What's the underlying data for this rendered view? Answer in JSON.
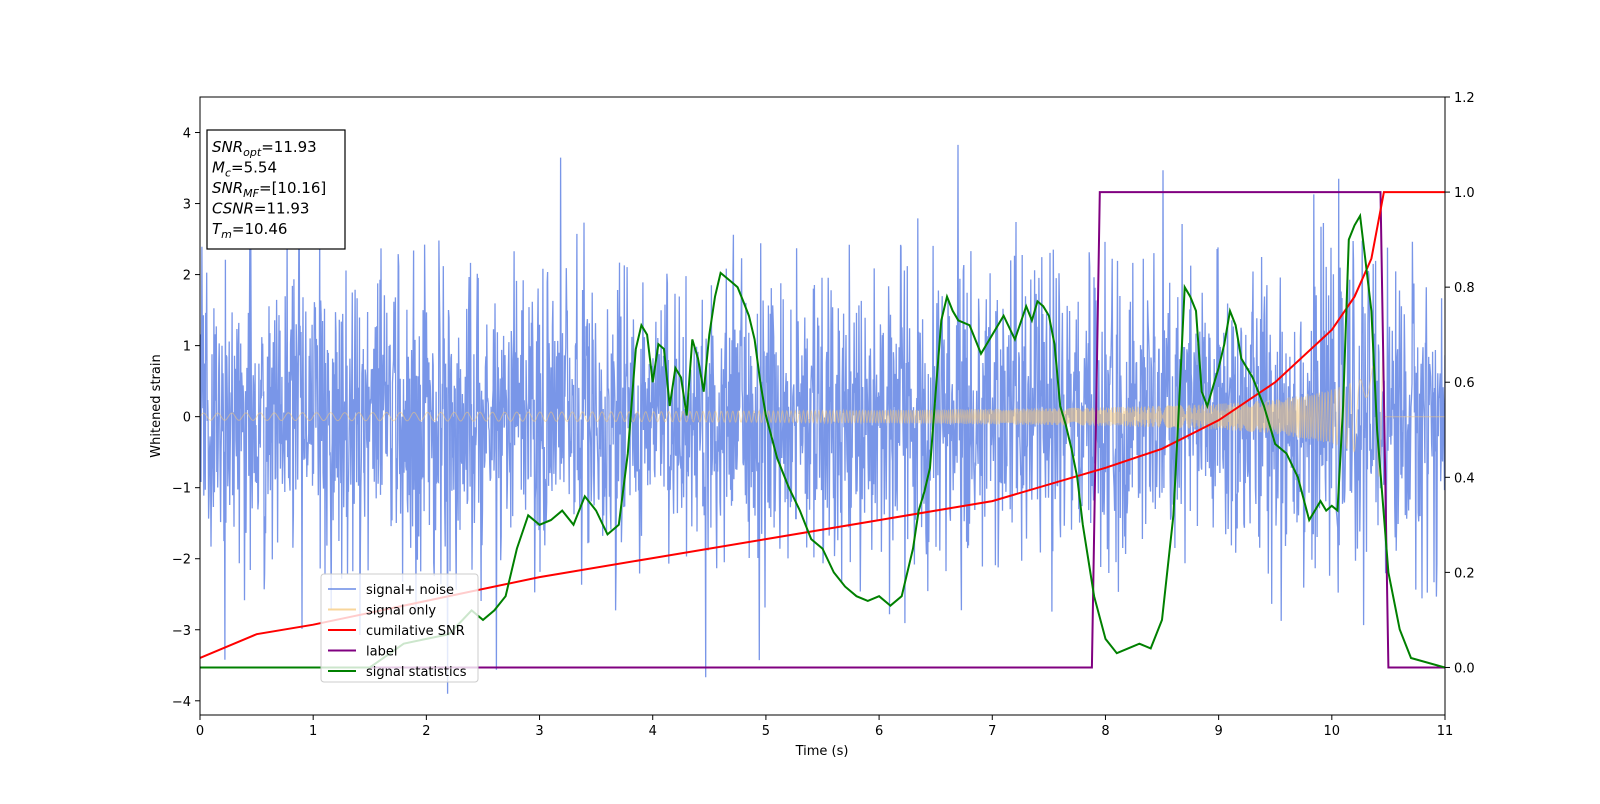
{
  "chart_data": {
    "type": "line",
    "xlabel": "Time (s)",
    "ylabel": "Whitened strain",
    "xlim": [
      0,
      11
    ],
    "ylim": [
      -4.2,
      4.5
    ],
    "y2lim": [
      -0.1,
      1.2
    ],
    "xticks": [
      0,
      1,
      2,
      3,
      4,
      5,
      6,
      7,
      8,
      9,
      10,
      11
    ],
    "yticks": [
      -4,
      -3,
      -2,
      -1,
      0,
      1,
      2,
      3,
      4
    ],
    "y2ticks": [
      "0.0",
      "0.2",
      "0.4",
      "0.6",
      "0.8",
      "1.0",
      "1.2"
    ],
    "info_box": [
      {
        "base": "SNR",
        "sub": "opt",
        "value": "=11.93"
      },
      {
        "base": "M",
        "sub": "c",
        "value": "=5.54"
      },
      {
        "base": "SNR",
        "sub": "MF",
        "value": "=[10.16]"
      },
      {
        "base": "CSNR",
        "sub": "",
        "value": "=11.93"
      },
      {
        "base": "T",
        "sub": "m",
        "value": "=10.46"
      }
    ],
    "legend_position": "lower-left",
    "colors": {
      "signal_noise": "#6a8be6",
      "signal_only": "#f5c87a",
      "cumulative_snr": "#ff0000",
      "label": "#800080",
      "signal_statistics": "#008000"
    },
    "series": [
      {
        "name": "signal+ noise",
        "axis": "left",
        "description_noise_std": 1.0
      },
      {
        "name": "signal only",
        "axis": "left",
        "envelope": {
          "x": [
            0,
            2,
            4,
            6,
            8,
            9,
            9.5,
            10,
            10.3,
            10.46
          ],
          "y": [
            0.05,
            0.06,
            0.07,
            0.09,
            0.13,
            0.18,
            0.24,
            0.38,
            0.55,
            0.95
          ]
        }
      },
      {
        "name": "cumilative SNR",
        "axis": "right",
        "x": [
          0,
          0.5,
          1,
          2,
          3,
          4,
          5,
          6,
          7,
          8,
          8.5,
          9,
          9.5,
          10,
          10.2,
          10.35,
          10.46,
          11
        ],
        "y": [
          0.02,
          0.07,
          0.09,
          0.14,
          0.19,
          0.23,
          0.27,
          0.31,
          0.35,
          0.42,
          0.46,
          0.52,
          0.6,
          0.71,
          0.78,
          0.86,
          1.0,
          1.0
        ]
      },
      {
        "name": "label",
        "axis": "right",
        "x": [
          0,
          7.88,
          7.95,
          10.43,
          10.5,
          11
        ],
        "y": [
          0,
          0,
          1,
          1,
          0,
          0
        ]
      },
      {
        "name": "signal statistics",
        "axis": "right",
        "x": [
          0,
          0.5,
          1,
          1.5,
          1.8,
          2.0,
          2.2,
          2.4,
          2.5,
          2.6,
          2.7,
          2.8,
          2.9,
          3.0,
          3.1,
          3.2,
          3.3,
          3.4,
          3.5,
          3.6,
          3.7,
          3.78,
          3.85,
          3.9,
          3.95,
          4.0,
          4.05,
          4.1,
          4.15,
          4.2,
          4.25,
          4.3,
          4.35,
          4.4,
          4.45,
          4.5,
          4.55,
          4.6,
          4.65,
          4.7,
          4.75,
          4.8,
          4.85,
          4.9,
          4.95,
          5.0,
          5.1,
          5.2,
          5.3,
          5.4,
          5.5,
          5.6,
          5.7,
          5.8,
          5.9,
          6.0,
          6.1,
          6.2,
          6.3,
          6.35,
          6.4,
          6.45,
          6.5,
          6.55,
          6.6,
          6.65,
          6.7,
          6.8,
          6.9,
          7.0,
          7.1,
          7.2,
          7.3,
          7.35,
          7.4,
          7.45,
          7.5,
          7.55,
          7.6,
          7.65,
          7.7,
          7.75,
          7.8,
          7.9,
          8.0,
          8.1,
          8.2,
          8.3,
          8.4,
          8.5,
          8.6,
          8.65,
          8.7,
          8.75,
          8.8,
          8.85,
          8.9,
          9.0,
          9.05,
          9.1,
          9.15,
          9.2,
          9.3,
          9.4,
          9.5,
          9.6,
          9.7,
          9.8,
          9.9,
          9.95,
          10.0,
          10.05,
          10.1,
          10.15,
          10.2,
          10.25,
          10.3,
          10.35,
          10.4,
          10.5,
          10.6,
          10.7,
          11
        ],
        "y": [
          0.0,
          0.0,
          0.0,
          0.0,
          0.05,
          0.06,
          0.07,
          0.12,
          0.1,
          0.12,
          0.15,
          0.25,
          0.32,
          0.3,
          0.31,
          0.33,
          0.3,
          0.36,
          0.33,
          0.28,
          0.3,
          0.45,
          0.67,
          0.72,
          0.7,
          0.6,
          0.68,
          0.67,
          0.55,
          0.63,
          0.61,
          0.53,
          0.69,
          0.65,
          0.58,
          0.7,
          0.78,
          0.83,
          0.82,
          0.81,
          0.8,
          0.77,
          0.74,
          0.69,
          0.6,
          0.53,
          0.44,
          0.38,
          0.33,
          0.27,
          0.25,
          0.2,
          0.17,
          0.15,
          0.14,
          0.15,
          0.13,
          0.15,
          0.25,
          0.33,
          0.37,
          0.42,
          0.58,
          0.73,
          0.78,
          0.75,
          0.73,
          0.72,
          0.66,
          0.7,
          0.74,
          0.69,
          0.76,
          0.73,
          0.77,
          0.76,
          0.74,
          0.68,
          0.55,
          0.51,
          0.46,
          0.4,
          0.3,
          0.15,
          0.06,
          0.03,
          0.04,
          0.05,
          0.04,
          0.1,
          0.32,
          0.55,
          0.8,
          0.78,
          0.75,
          0.58,
          0.55,
          0.63,
          0.68,
          0.75,
          0.72,
          0.65,
          0.61,
          0.55,
          0.47,
          0.45,
          0.4,
          0.31,
          0.35,
          0.33,
          0.34,
          0.33,
          0.55,
          0.9,
          0.93,
          0.95,
          0.85,
          0.75,
          0.5,
          0.2,
          0.08,
          0.02,
          0.0
        ]
      }
    ]
  }
}
